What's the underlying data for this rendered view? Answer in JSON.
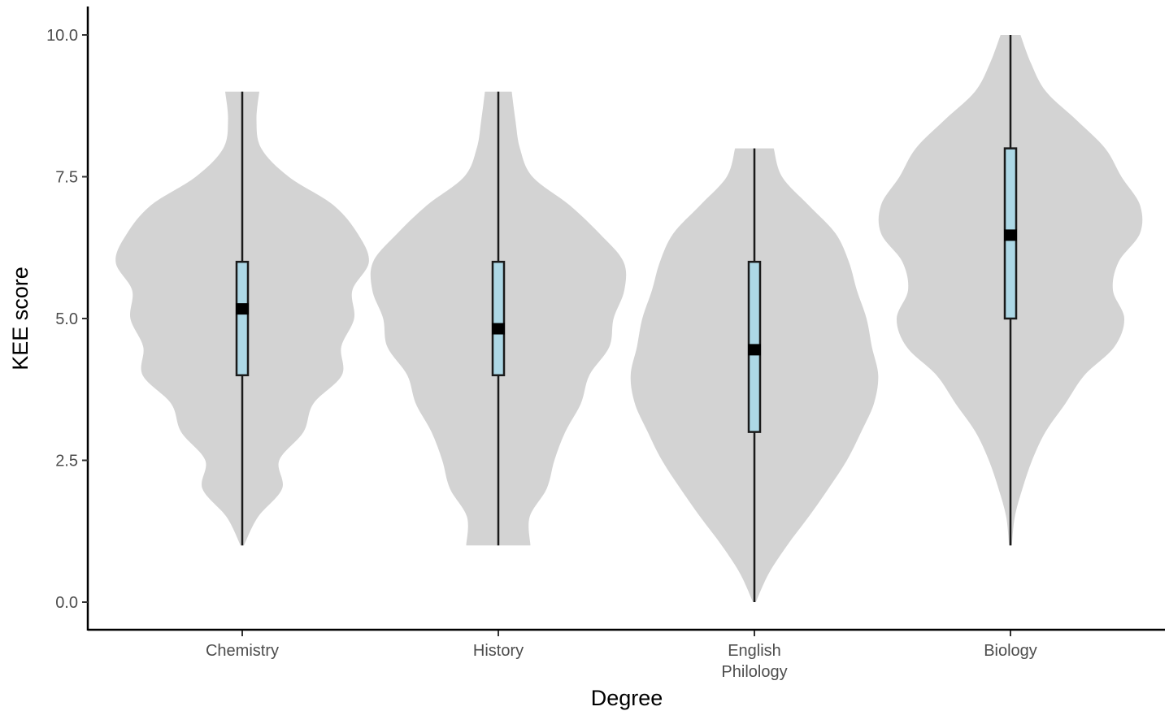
{
  "chart_data": {
    "type": "violin",
    "title": "",
    "xlabel": "Degree",
    "ylabel": "KEE score",
    "ylim": [
      0,
      10
    ],
    "yticks": [
      0.0,
      2.5,
      5.0,
      7.5,
      10.0
    ],
    "ytick_labels": [
      "0.0",
      "2.5",
      "5.0",
      "7.5",
      "10.0"
    ],
    "grid": false,
    "legend": "none",
    "categories": [
      {
        "label": "Chemistry",
        "label_lines": [
          "Chemistry"
        ]
      },
      {
        "label": "History",
        "label_lines": [
          "History"
        ]
      },
      {
        "label": "English Philology",
        "label_lines": [
          "English",
          "Philology"
        ]
      },
      {
        "label": "Biology",
        "label_lines": [
          "Biology"
        ]
      }
    ],
    "box_stats": [
      {
        "min": 1,
        "q1": 4,
        "median": 5.17,
        "q3": 6,
        "max": 9
      },
      {
        "min": 1,
        "q1": 4,
        "median": 4.82,
        "q3": 6,
        "max": 9
      },
      {
        "min": 0,
        "q1": 3,
        "median": 4.45,
        "q3": 6,
        "max": 8
      },
      {
        "min": 1,
        "q1": 5,
        "median": 6.47,
        "q3": 8,
        "max": 10
      }
    ],
    "violin_half_width": [
      [
        [
          1,
          0.06
        ],
        [
          1.5,
          0.55
        ],
        [
          2,
          1.4
        ],
        [
          2.5,
          1.3
        ],
        [
          3,
          2.15
        ],
        [
          3.5,
          2.5
        ],
        [
          4,
          3.5
        ],
        [
          4.5,
          3.48
        ],
        [
          5,
          3.93
        ],
        [
          5.5,
          3.87
        ],
        [
          6,
          4.45
        ],
        [
          6.5,
          4.05
        ],
        [
          7,
          3.2
        ],
        [
          7.5,
          1.63
        ],
        [
          8,
          0.67
        ],
        [
          8.5,
          0.5
        ],
        [
          9,
          0.6
        ]
      ],
      [
        [
          1,
          1.13
        ],
        [
          1.5,
          1.1
        ],
        [
          2,
          1.7
        ],
        [
          2.5,
          1.97
        ],
        [
          3,
          2.35
        ],
        [
          3.5,
          2.9
        ],
        [
          4,
          3.2
        ],
        [
          4.5,
          3.9
        ],
        [
          5,
          4.05
        ],
        [
          5.5,
          4.43
        ],
        [
          6,
          4.4
        ],
        [
          6.5,
          3.55
        ],
        [
          7,
          2.5
        ],
        [
          7.5,
          1.2
        ],
        [
          8,
          0.76
        ],
        [
          8.5,
          0.6
        ],
        [
          9,
          0.47
        ]
      ],
      [
        [
          0,
          0.05
        ],
        [
          0.5,
          0.5
        ],
        [
          1,
          1.15
        ],
        [
          1.5,
          1.9
        ],
        [
          2,
          2.6
        ],
        [
          2.5,
          3.25
        ],
        [
          3,
          3.75
        ],
        [
          3.5,
          4.2
        ],
        [
          4,
          4.35
        ],
        [
          4.5,
          4.13
        ],
        [
          5,
          3.94
        ],
        [
          5.5,
          3.6
        ],
        [
          6,
          3.32
        ],
        [
          6.5,
          2.85
        ],
        [
          7,
          1.9
        ],
        [
          7.5,
          0.97
        ],
        [
          8,
          0.68
        ]
      ],
      [
        [
          1,
          0.05
        ],
        [
          1.5,
          0.15
        ],
        [
          2,
          0.42
        ],
        [
          2.5,
          0.76
        ],
        [
          3,
          1.23
        ],
        [
          3.5,
          1.93
        ],
        [
          4,
          2.6
        ],
        [
          4.5,
          3.65
        ],
        [
          5,
          4.0
        ],
        [
          5.5,
          3.6
        ],
        [
          6,
          3.8
        ],
        [
          6.5,
          4.55
        ],
        [
          7,
          4.55
        ],
        [
          7.5,
          3.9
        ],
        [
          8,
          3.33
        ],
        [
          8.5,
          2.32
        ],
        [
          9,
          1.25
        ],
        [
          9.5,
          0.72
        ],
        [
          10,
          0.35
        ]
      ]
    ],
    "colors": {
      "violin_fill": "#d3d3d3",
      "box_fill": "#add8e6",
      "box_stroke": "#1a1a1a",
      "median": "#000000",
      "axis": "#000000"
    }
  }
}
